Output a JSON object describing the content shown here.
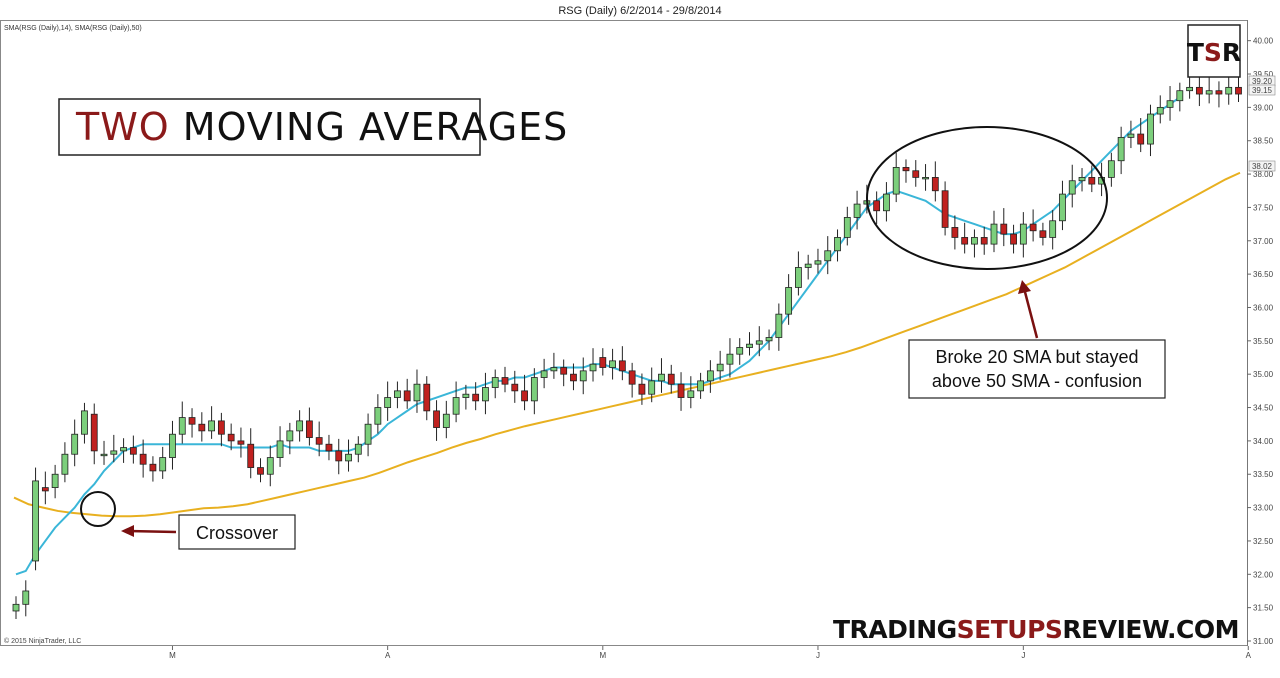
{
  "header": {
    "title": "RSG (Daily)  6/2/2014 - 29/8/2014",
    "indicators": "SMA(RSG (Daily),14), SMA(RSG (Daily),50)",
    "copyright": "© 2015 NinjaTrader, LLC"
  },
  "title_box": {
    "part1": "TWO",
    "part2": " MOVING AVERAGES",
    "part1_color": "#8b1a1a",
    "part2_color": "#111111"
  },
  "logo": {
    "t": "T",
    "s": "S",
    "r": "R",
    "s_color": "#8b1a1a"
  },
  "brand": {
    "part1": "TRADING",
    "part2": "SETUPS",
    "part3": "REVIEW.COM",
    "accent": "#8b1a1a"
  },
  "annotations": {
    "crossover": "Crossover",
    "confusion_line1": "Broke 20 SMA but stayed",
    "confusion_line2": "above 50 SMA - confusion"
  },
  "colors": {
    "up": "#7ccf7c",
    "down": "#c0211f",
    "sma_fast": "#3ab6d8",
    "sma_slow": "#e8b020",
    "arrow": "#7a1010"
  },
  "chart_data": {
    "type": "candlestick",
    "title": "RSG (Daily)  6/2/2014 - 29/8/2014",
    "ylim": [
      31.0,
      40.1
    ],
    "y_ticks": [
      31.0,
      31.5,
      32.0,
      32.5,
      33.0,
      33.5,
      34.0,
      34.5,
      35.0,
      35.5,
      36.0,
      36.5,
      37.0,
      37.5,
      38.0,
      38.5,
      39.0,
      39.5,
      40.0
    ],
    "x_ticks": [
      {
        "label": "M",
        "i": 16
      },
      {
        "label": "A",
        "i": 38
      },
      {
        "label": "M",
        "i": 60
      },
      {
        "label": "J",
        "i": 82
      },
      {
        "label": "J",
        "i": 103
      },
      {
        "label": "A",
        "i": 126
      }
    ],
    "price_labels": [
      "39.20",
      "39.15",
      "38.02"
    ],
    "close": [
      31.55,
      31.75,
      33.4,
      33.25,
      33.5,
      33.8,
      34.1,
      34.45,
      33.85,
      33.8,
      33.85,
      33.9,
      33.8,
      33.65,
      33.55,
      33.75,
      34.1,
      34.35,
      34.25,
      34.15,
      34.3,
      34.1,
      34.0,
      33.95,
      33.6,
      33.5,
      33.75,
      34.0,
      34.15,
      34.3,
      34.05,
      33.95,
      33.85,
      33.7,
      33.8,
      33.95,
      34.25,
      34.5,
      34.65,
      34.75,
      34.6,
      34.85,
      34.45,
      34.2,
      34.4,
      34.65,
      34.7,
      34.6,
      34.8,
      34.95,
      34.85,
      34.75,
      34.6,
      34.95,
      35.05,
      35.1,
      35.0,
      34.9,
      35.05,
      35.15,
      35.1,
      35.2,
      35.05,
      34.85,
      34.7,
      34.9,
      35.0,
      34.85,
      34.65,
      34.75,
      34.9,
      35.05,
      35.15,
      35.3,
      35.4,
      35.45,
      35.5,
      35.55,
      35.9,
      36.3,
      36.6,
      36.65,
      36.7,
      36.85,
      37.05,
      37.35,
      37.55,
      37.6,
      37.45,
      37.7,
      38.1,
      38.05,
      37.95,
      37.95,
      37.75,
      37.2,
      37.05,
      36.95,
      37.05,
      36.95,
      37.25,
      37.1,
      36.95,
      37.25,
      37.15,
      37.05,
      37.3,
      37.7,
      37.9,
      37.95,
      37.85,
      37.95,
      38.2,
      38.55,
      38.6,
      38.45,
      38.9,
      39.0,
      39.1,
      39.25,
      39.3,
      39.2,
      39.25,
      39.2,
      39.3,
      39.2
    ],
    "open": [
      31.45,
      31.55,
      32.2,
      33.3,
      33.3,
      33.5,
      33.8,
      34.1,
      34.4,
      33.8,
      33.8,
      33.85,
      33.9,
      33.8,
      33.65,
      33.55,
      33.75,
      34.1,
      34.35,
      34.25,
      34.15,
      34.3,
      34.1,
      34.0,
      33.95,
      33.6,
      33.5,
      33.75,
      34.0,
      34.15,
      34.3,
      34.05,
      33.95,
      33.85,
      33.7,
      33.8,
      33.95,
      34.25,
      34.5,
      34.65,
      34.75,
      34.6,
      34.85,
      34.45,
      34.2,
      34.4,
      34.65,
      34.7,
      34.6,
      34.8,
      34.95,
      34.85,
      34.75,
      34.6,
      34.95,
      35.05,
      35.1,
      35.0,
      34.9,
      35.05,
      35.25,
      35.1,
      35.2,
      35.05,
      34.85,
      34.7,
      34.9,
      35.0,
      34.85,
      34.65,
      34.75,
      34.9,
      35.05,
      35.15,
      35.3,
      35.4,
      35.45,
      35.5,
      35.55,
      35.9,
      36.3,
      36.6,
      36.65,
      36.7,
      36.85,
      37.05,
      37.35,
      37.55,
      37.6,
      37.45,
      37.7,
      38.1,
      38.05,
      37.95,
      37.95,
      37.75,
      37.2,
      37.05,
      36.95,
      37.05,
      36.95,
      37.25,
      37.1,
      36.95,
      37.25,
      37.15,
      37.05,
      37.3,
      37.7,
      37.9,
      37.95,
      37.85,
      37.95,
      38.2,
      38.55,
      38.6,
      38.45,
      38.9,
      39.0,
      39.1,
      39.25,
      39.3,
      39.2,
      39.25,
      39.2,
      39.3
    ],
    "sma_fast": [
      32.0,
      32.05,
      32.3,
      32.5,
      32.7,
      32.85,
      33.0,
      33.2,
      33.35,
      33.55,
      33.7,
      33.85,
      33.9,
      33.95,
      33.95,
      33.95,
      33.95,
      33.95,
      33.95,
      33.95,
      33.95,
      33.95,
      33.9,
      33.9,
      33.9,
      33.9,
      33.9,
      33.95,
      33.9,
      33.9,
      33.9,
      33.85,
      33.85,
      33.85,
      33.85,
      33.9,
      34.0,
      34.1,
      34.25,
      34.35,
      34.45,
      34.55,
      34.6,
      34.65,
      34.7,
      34.75,
      34.8,
      34.8,
      34.85,
      34.9,
      34.9,
      34.95,
      34.95,
      35.0,
      35.05,
      35.1,
      35.1,
      35.1,
      35.1,
      35.15,
      35.15,
      35.1,
      35.05,
      35.0,
      34.95,
      34.9,
      34.9,
      34.85,
      34.85,
      34.85,
      34.85,
      34.9,
      34.95,
      35.0,
      35.1,
      35.2,
      35.35,
      35.5,
      35.7,
      35.9,
      36.1,
      36.3,
      36.5,
      36.7,
      36.9,
      37.1,
      37.3,
      37.5,
      37.6,
      37.7,
      37.75,
      37.7,
      37.65,
      37.6,
      37.5,
      37.4,
      37.35,
      37.3,
      37.25,
      37.2,
      37.15,
      37.1,
      37.1,
      37.15,
      37.25,
      37.35,
      37.45,
      37.6,
      37.75,
      37.9,
      38.05,
      38.2,
      38.35,
      38.5,
      38.65,
      38.75,
      38.85,
      38.95,
      39.05,
      39.15
    ],
    "sma_slow": [
      33.15,
      33.05,
      33.0,
      32.95,
      32.92,
      32.9,
      32.88,
      32.87,
      32.87,
      32.88,
      32.9,
      32.93,
      32.96,
      32.99,
      33.0,
      33.02,
      33.05,
      33.1,
      33.15,
      33.2,
      33.25,
      33.3,
      33.35,
      33.4,
      33.45,
      33.52,
      33.6,
      33.68,
      33.75,
      33.82,
      33.9,
      33.97,
      34.03,
      34.1,
      34.16,
      34.22,
      34.27,
      34.32,
      34.37,
      34.42,
      34.47,
      34.52,
      34.57,
      34.62,
      34.67,
      34.72,
      34.77,
      34.82,
      34.87,
      34.92,
      34.97,
      35.02,
      35.07,
      35.12,
      35.17,
      35.22,
      35.27,
      35.33,
      35.4,
      35.48,
      35.56,
      35.64,
      35.72,
      35.8,
      35.88,
      35.96,
      36.04,
      36.12,
      36.2,
      36.3,
      36.4,
      36.5,
      36.6,
      36.72,
      36.84,
      36.96,
      37.08,
      37.2,
      37.32,
      37.44,
      37.56,
      37.68,
      37.8,
      37.92,
      38.02
    ]
  }
}
